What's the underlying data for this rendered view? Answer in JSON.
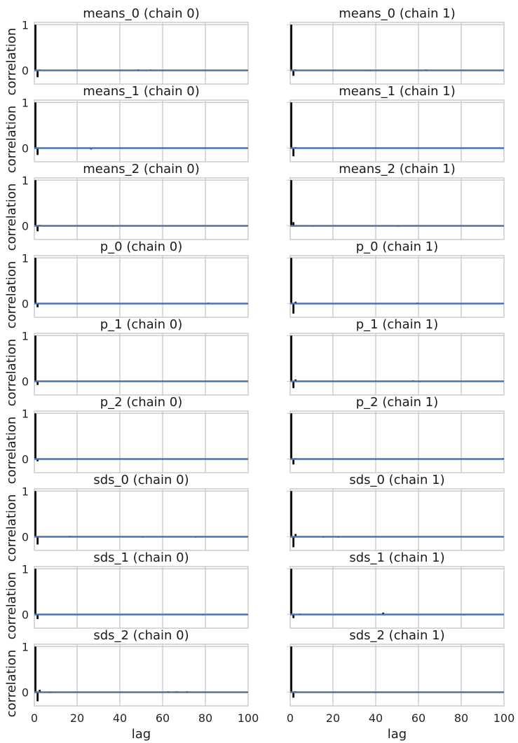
{
  "chart_data": {
    "type": "bar",
    "layout": "9x2 grid of autocorrelation plots",
    "xlabel": "lag",
    "ylabel": "correlation",
    "xlim": [
      0,
      100
    ],
    "ylim": [
      -0.3,
      1.05
    ],
    "xticks": [
      0,
      20,
      40,
      60,
      80,
      100
    ],
    "yticks": [
      0,
      1
    ],
    "grid": true,
    "colors": {
      "bars": "#000000",
      "zero_line": "#4c72b0",
      "grid": "#cccccc",
      "frame": "#cccccc"
    },
    "panels": [
      {
        "title": "means_0 (chain 0)",
        "bars": [
          [
            0,
            1.0
          ],
          [
            1,
            -0.15
          ],
          [
            2,
            0.02
          ],
          [
            48,
            0.02
          ],
          [
            54,
            0.02
          ]
        ]
      },
      {
        "title": "means_0 (chain 1)",
        "bars": [
          [
            0,
            1.0
          ],
          [
            1,
            -0.12
          ],
          [
            2,
            0.02
          ],
          [
            20,
            0.01
          ],
          [
            37,
            -0.02
          ],
          [
            63,
            0.02
          ]
        ]
      },
      {
        "title": "means_1 (chain 0)",
        "bars": [
          [
            0,
            1.0
          ],
          [
            1,
            -0.15
          ],
          [
            8,
            0.01
          ],
          [
            16,
            0.01
          ],
          [
            26,
            -0.03
          ],
          [
            29,
            0.01
          ],
          [
            48,
            0.01
          ],
          [
            51,
            0.01
          ],
          [
            53,
            0.01
          ],
          [
            78,
            0.01
          ]
        ]
      },
      {
        "title": "means_1 (chain 1)",
        "bars": [
          [
            0,
            1.0
          ],
          [
            1,
            -0.18
          ],
          [
            2,
            0.02
          ],
          [
            30,
            0.01
          ],
          [
            49,
            0.01
          ],
          [
            50,
            0.01
          ],
          [
            53,
            0.01
          ],
          [
            59,
            0.01
          ],
          [
            93,
            0.01
          ]
        ]
      },
      {
        "title": "means_2 (chain 0)",
        "bars": [
          [
            0,
            1.0
          ],
          [
            1,
            -0.12
          ],
          [
            2,
            0.02
          ],
          [
            36,
            -0.02
          ]
        ]
      },
      {
        "title": "means_2 (chain 1)",
        "bars": [
          [
            0,
            1.0
          ],
          [
            1,
            0.08
          ],
          [
            10,
            -0.02
          ],
          [
            50,
            -0.02
          ]
        ]
      },
      {
        "title": "p_0 (chain 0)",
        "bars": [
          [
            0,
            1.0
          ],
          [
            1,
            -0.08
          ],
          [
            81,
            0.02
          ]
        ]
      },
      {
        "title": "p_0 (chain 1)",
        "bars": [
          [
            0,
            1.0
          ],
          [
            1,
            -0.22
          ],
          [
            2,
            0.04
          ],
          [
            59,
            0.02
          ]
        ]
      },
      {
        "title": "p_1 (chain 0)",
        "bars": [
          [
            0,
            1.0
          ],
          [
            1,
            -0.08
          ],
          [
            9,
            0.01
          ],
          [
            16,
            0.01
          ],
          [
            34,
            0.01
          ]
        ]
      },
      {
        "title": "p_1 (chain 1)",
        "bars": [
          [
            0,
            1.0
          ],
          [
            1,
            -0.15
          ],
          [
            2,
            0.04
          ],
          [
            57,
            0.02
          ],
          [
            60,
            -0.02
          ],
          [
            73,
            0.01
          ]
        ]
      },
      {
        "title": "p_2 (chain 0)",
        "bars": [
          [
            0,
            1.0
          ],
          [
            1,
            -0.05
          ],
          [
            11,
            0.01
          ],
          [
            16,
            0.01
          ],
          [
            23,
            0.01
          ],
          [
            35,
            0.01
          ]
        ]
      },
      {
        "title": "p_2 (chain 1)",
        "bars": [
          [
            0,
            1.0
          ],
          [
            1,
            -0.12
          ],
          [
            2,
            0.02
          ],
          [
            34,
            0.01
          ],
          [
            43,
            0.01
          ],
          [
            62,
            0.01
          ],
          [
            99,
            0.02
          ]
        ]
      },
      {
        "title": "sds_0 (chain 0)",
        "bars": [
          [
            0,
            1.0
          ],
          [
            1,
            -0.17
          ],
          [
            16,
            0.02
          ],
          [
            50,
            -0.02
          ],
          [
            67,
            0.01
          ],
          [
            75,
            -0.02
          ],
          [
            90,
            0.01
          ]
        ]
      },
      {
        "title": "sds_0 (chain 1)",
        "bars": [
          [
            0,
            1.0
          ],
          [
            1,
            -0.23
          ],
          [
            2,
            0.06
          ],
          [
            15,
            -0.02
          ],
          [
            22,
            -0.02
          ],
          [
            25,
            0.01
          ],
          [
            34,
            0.01
          ]
        ]
      },
      {
        "title": "sds_1 (chain 0)",
        "bars": [
          [
            0,
            1.0
          ],
          [
            1,
            -0.1
          ],
          [
            20,
            0.01
          ],
          [
            78,
            -0.02
          ]
        ]
      },
      {
        "title": "sds_1 (chain 1)",
        "bars": [
          [
            0,
            1.0
          ],
          [
            1,
            -0.08
          ],
          [
            4,
            0.02
          ],
          [
            12,
            0.01
          ],
          [
            43,
            0.04
          ],
          [
            81,
            -0.02
          ]
        ]
      },
      {
        "title": "sds_2 (chain 0)",
        "bars": [
          [
            0,
            1.0
          ],
          [
            1,
            -0.2
          ],
          [
            2,
            0.05
          ],
          [
            7,
            -0.02
          ],
          [
            22,
            0.01
          ],
          [
            62,
            0.02
          ],
          [
            66,
            0.02
          ],
          [
            71,
            0.02
          ],
          [
            85,
            0.01
          ],
          [
            97,
            0.01
          ]
        ]
      },
      {
        "title": "sds_2 (chain 1)",
        "bars": [
          [
            0,
            1.0
          ],
          [
            1,
            -0.12
          ],
          [
            2,
            0.02
          ],
          [
            39,
            -0.01
          ],
          [
            87,
            0.01
          ],
          [
            90,
            0.01
          ]
        ]
      }
    ]
  }
}
